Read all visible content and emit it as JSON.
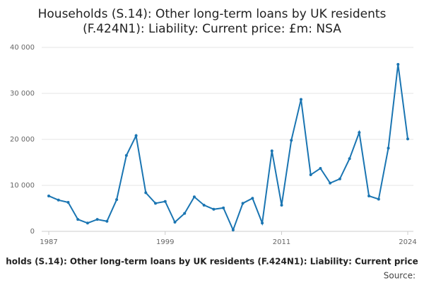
{
  "chart_data": {
    "type": "line",
    "title": [
      "Households (S.14): Other long-term loans by UK residents",
      "(F.424N1): Liability: Current price: £m: NSA"
    ],
    "source": "Source:",
    "x": [
      1987,
      1988,
      1989,
      1990,
      1991,
      1992,
      1993,
      1994,
      1995,
      1996,
      1997,
      1998,
      1999,
      2000,
      2001,
      2002,
      2003,
      2004,
      2005,
      2006,
      2007,
      2008,
      2009,
      2010,
      2011,
      2012,
      2013,
      2014,
      2015,
      2016,
      2017,
      2018,
      2019,
      2020,
      2021,
      2022,
      2023,
      2024
    ],
    "series": [
      {
        "name": "holds (S.14): Other long-term loans by UK residents (F.424N1): Liability: Current price",
        "color": "#1a75b2",
        "values": [
          7700,
          6800,
          6300,
          2600,
          1800,
          2600,
          2200,
          6900,
          16500,
          20800,
          8400,
          6100,
          6500,
          2000,
          3900,
          7500,
          5700,
          4800,
          5100,
          300,
          6100,
          7200,
          1800,
          17500,
          5700,
          19800,
          28700,
          12300,
          13700,
          10500,
          11400,
          15800,
          21500,
          7700,
          7000,
          18100,
          36300,
          20100
        ]
      }
    ],
    "xlim": [
      1987,
      2024
    ],
    "xticks": [
      1987,
      1999,
      2011,
      2024
    ],
    "ylim": [
      0,
      40000
    ],
    "yticks": [
      0,
      {
        "value": 10000,
        "label": "10 000"
      },
      {
        "value": 20000,
        "label": "20 000"
      },
      {
        "value": 30000,
        "label": "30 000"
      },
      {
        "value": 40000,
        "label": "40 000"
      }
    ],
    "grid": true
  }
}
